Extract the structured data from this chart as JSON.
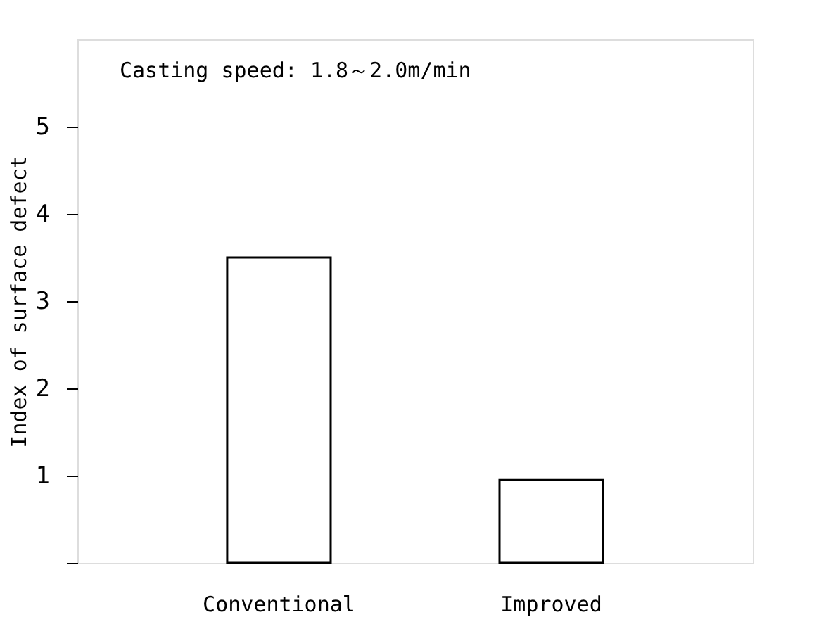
{
  "chart_data": {
    "type": "bar",
    "ylabel": "Index of surface defect",
    "categories": [
      "Conventional",
      "Improved"
    ],
    "values": [
      3.5,
      0.95
    ],
    "color": "#ffffff",
    "ylim": [
      0,
      6
    ],
    "yticks": [
      {
        "value": 0,
        "label": null
      },
      1,
      2,
      3,
      4,
      5
    ],
    "grid": false,
    "annotations": [
      "Casting speed: 1.8～2.0m/min"
    ]
  }
}
